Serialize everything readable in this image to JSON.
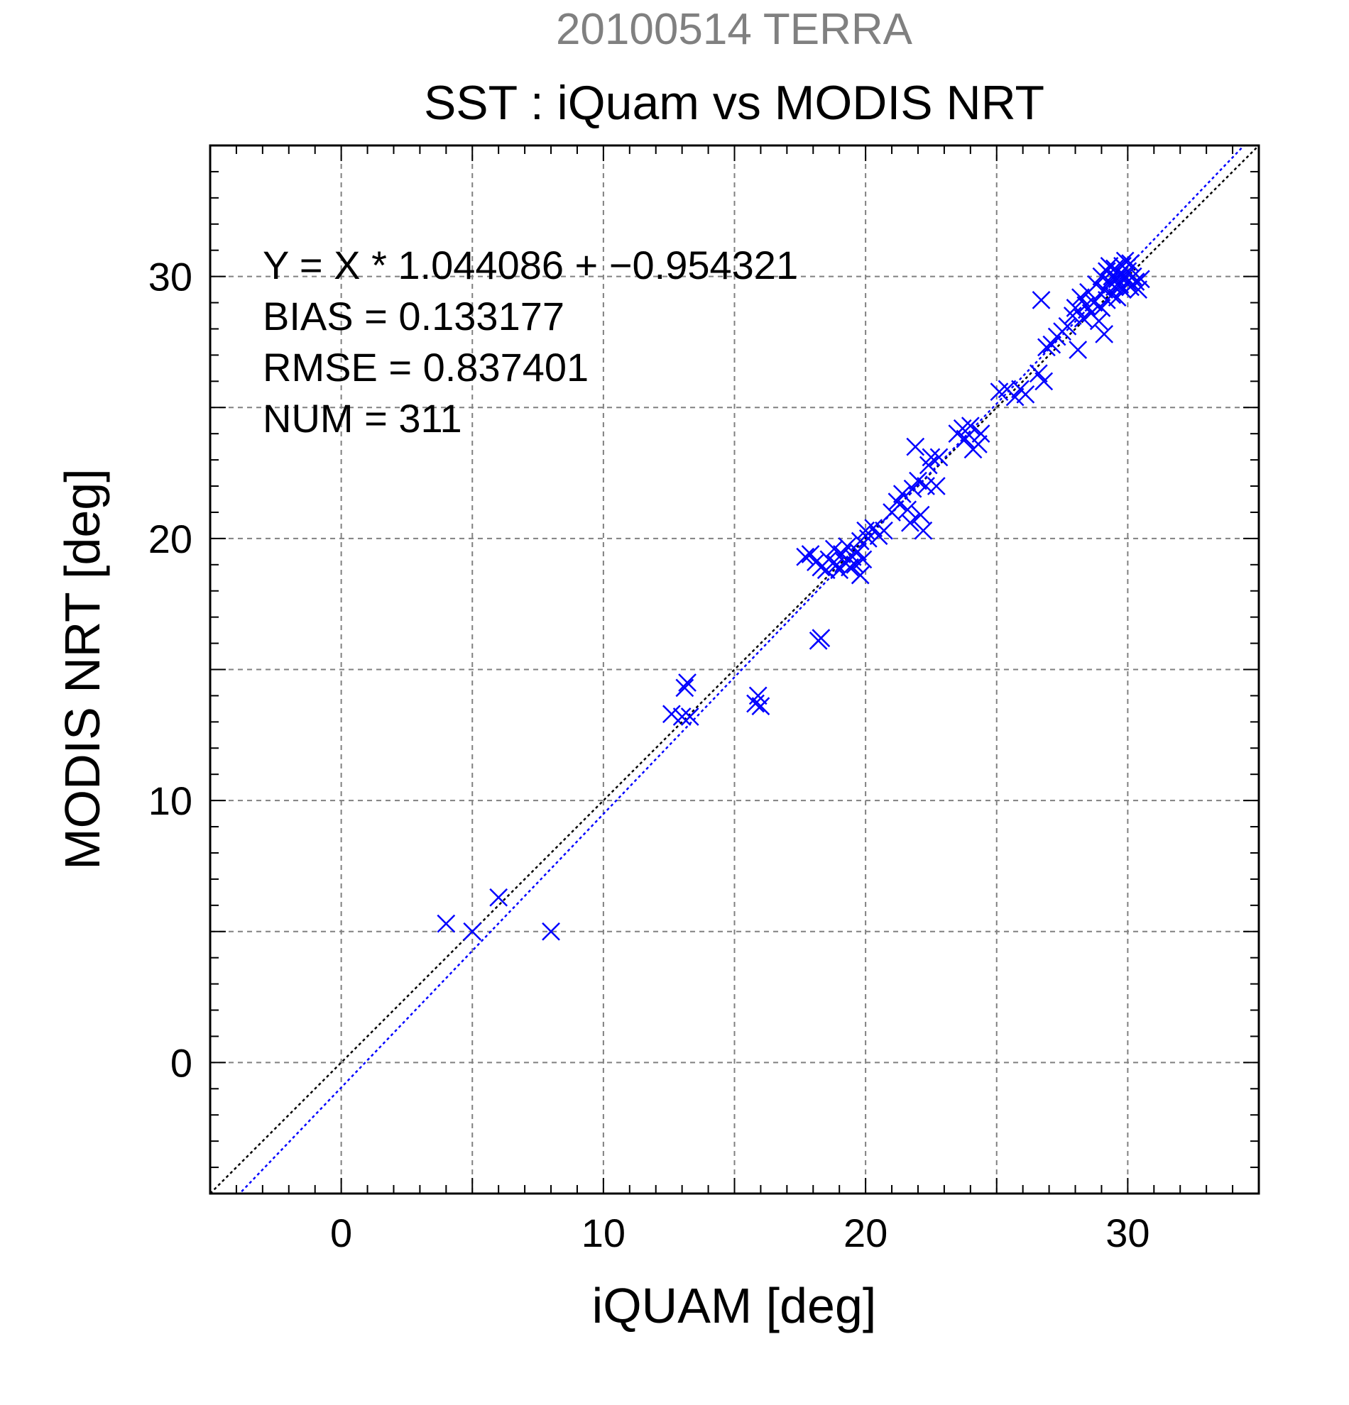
{
  "chart_data": {
    "type": "scatter",
    "title": "SST : iQuam vs MODIS NRT",
    "subtitle": "20100514 TERRA",
    "xlabel": "iQUAM [deg]",
    "ylabel": "MODIS NRT [deg]",
    "xlim": [
      -5,
      35
    ],
    "ylim": [
      -5,
      35
    ],
    "xticks": [
      0,
      10,
      20,
      30
    ],
    "yticks": [
      0,
      10,
      20,
      30
    ],
    "grid": true,
    "colors": {
      "subtitle": "#808080",
      "points": "#0000ff",
      "fit_line": "#0000ff",
      "identity_line": "#000000",
      "grid": "#808080"
    },
    "annotations": [
      "Y = X * 1.044086 + −0.954321",
      "BIAS = 0.133177",
      "RMSE = 0.837401",
      "NUM = 311"
    ],
    "fit": {
      "slope": 1.044086,
      "intercept": -0.954321
    },
    "reference_line": {
      "slope": 1,
      "intercept": 0
    },
    "series": [
      {
        "marker": "x",
        "points": [
          [
            4.0,
            5.3
          ],
          [
            5.0,
            5.0
          ],
          [
            6.0,
            6.3
          ],
          [
            8.0,
            5.0
          ],
          [
            12.6,
            13.3
          ],
          [
            13.0,
            13.2
          ],
          [
            13.1,
            14.3
          ],
          [
            13.2,
            14.5
          ],
          [
            13.3,
            13.2
          ],
          [
            15.8,
            13.7
          ],
          [
            15.9,
            14.0
          ],
          [
            16.0,
            13.6
          ],
          [
            18.2,
            16.1
          ],
          [
            18.3,
            16.2
          ],
          [
            17.7,
            19.3
          ],
          [
            17.9,
            19.4
          ],
          [
            18.1,
            19.1
          ],
          [
            18.3,
            18.9
          ],
          [
            18.5,
            18.8
          ],
          [
            18.6,
            19.2
          ],
          [
            18.8,
            19.6
          ],
          [
            18.9,
            19.0
          ],
          [
            19.0,
            18.8
          ],
          [
            19.1,
            19.4
          ],
          [
            19.2,
            19.1
          ],
          [
            19.3,
            19.7
          ],
          [
            19.4,
            18.9
          ],
          [
            19.5,
            19.3
          ],
          [
            19.6,
            19.0
          ],
          [
            19.7,
            19.5
          ],
          [
            19.8,
            18.6
          ],
          [
            19.8,
            19.9
          ],
          [
            19.9,
            19.2
          ],
          [
            20.0,
            20.3
          ],
          [
            20.1,
            20.0
          ],
          [
            20.3,
            20.4
          ],
          [
            20.5,
            20.1
          ],
          [
            20.7,
            20.3
          ],
          [
            21.0,
            21.0
          ],
          [
            21.2,
            21.4
          ],
          [
            21.4,
            21.7
          ],
          [
            21.6,
            21.1
          ],
          [
            21.7,
            20.6
          ],
          [
            21.8,
            21.9
          ],
          [
            21.9,
            23.5
          ],
          [
            22.0,
            22.2
          ],
          [
            22.1,
            20.9
          ],
          [
            22.2,
            20.3
          ],
          [
            22.3,
            22.0
          ],
          [
            22.4,
            22.8
          ],
          [
            22.5,
            23.1
          ],
          [
            22.7,
            22.0
          ],
          [
            22.8,
            23.1
          ],
          [
            23.5,
            24.0
          ],
          [
            23.7,
            24.2
          ],
          [
            23.8,
            23.8
          ],
          [
            24.0,
            24.3
          ],
          [
            24.1,
            23.4
          ],
          [
            24.3,
            23.6
          ],
          [
            24.4,
            24.0
          ],
          [
            25.1,
            25.6
          ],
          [
            25.4,
            25.7
          ],
          [
            25.7,
            25.4
          ],
          [
            25.9,
            25.7
          ],
          [
            26.1,
            25.5
          ],
          [
            26.6,
            26.3
          ],
          [
            26.8,
            26.0
          ],
          [
            26.7,
            29.1
          ],
          [
            26.9,
            27.3
          ],
          [
            27.1,
            27.4
          ],
          [
            27.3,
            27.7
          ],
          [
            27.5,
            27.9
          ],
          [
            27.7,
            28.1
          ],
          [
            27.9,
            28.5
          ],
          [
            28.0,
            28.8
          ],
          [
            28.1,
            27.2
          ],
          [
            28.2,
            29.2
          ],
          [
            28.3,
            28.4
          ],
          [
            28.4,
            28.9
          ],
          [
            28.5,
            29.4
          ],
          [
            28.6,
            28.6
          ],
          [
            28.7,
            29.0
          ],
          [
            28.8,
            29.7
          ],
          [
            28.9,
            28.3
          ],
          [
            29.0,
            30.0
          ],
          [
            29.0,
            28.8
          ],
          [
            29.1,
            27.8
          ],
          [
            29.1,
            29.5
          ],
          [
            29.2,
            30.2
          ],
          [
            29.2,
            29.1
          ],
          [
            29.3,
            29.8
          ],
          [
            29.3,
            30.4
          ],
          [
            29.4,
            29.3
          ],
          [
            29.4,
            30.0
          ],
          [
            29.5,
            29.6
          ],
          [
            29.5,
            30.3
          ],
          [
            29.6,
            29.9
          ],
          [
            29.6,
            29.2
          ],
          [
            29.7,
            30.1
          ],
          [
            29.7,
            29.7
          ],
          [
            29.8,
            30.4
          ],
          [
            29.8,
            29.5
          ],
          [
            29.9,
            30.0
          ],
          [
            29.9,
            30.6
          ],
          [
            30.0,
            29.8
          ],
          [
            30.0,
            30.2
          ],
          [
            30.1,
            29.6
          ],
          [
            30.2,
            30.0
          ],
          [
            30.3,
            29.8
          ],
          [
            30.4,
            29.5
          ],
          [
            30.5,
            29.9
          ],
          [
            30.1,
            30.5
          ]
        ]
      }
    ]
  }
}
